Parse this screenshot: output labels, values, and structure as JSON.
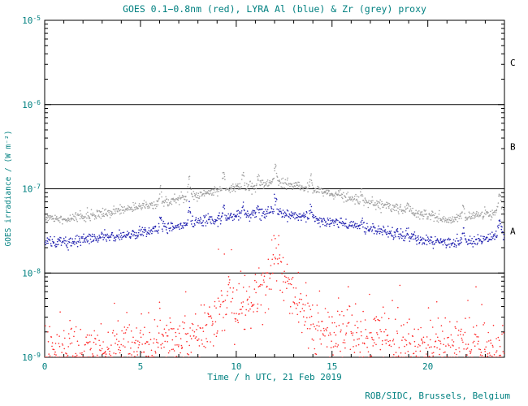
{
  "page": {
    "credit": "ROB/SIDC, Brussels, Belgium"
  },
  "colors": {
    "axis_text": "#008080",
    "frame": "#000000",
    "background": "#ffffff",
    "goes_red": "#ff2a2a",
    "lyra_al_blue": "#2222b0",
    "lyra_zr_grey": "#a0a0a0"
  },
  "chart_data": {
    "type": "scatter",
    "title": "GOES 0.1−0.8nm (red), LYRA Al (blue) & Zr (grey) proxy",
    "xlabel": "Time / h UTC, 21 Feb 2019",
    "ylabel": "GOES irradiance / (W m⁻²)",
    "date_shown": "21 Feb 2019",
    "x_range_hours": [
      0,
      24
    ],
    "x_major_ticks": [
      0,
      5,
      10,
      15,
      20
    ],
    "y_scale": "log",
    "y_range_w_m2": [
      1e-09,
      1e-05
    ],
    "y_log_range": [
      -9,
      -5
    ],
    "y_tick_exponents": [
      -5,
      -6,
      -7,
      -8,
      -9
    ],
    "grid": false,
    "legend_position": "in-title",
    "flare_class_lines": [
      {
        "label": "C",
        "log10_flux": -6
      },
      {
        "label": "B",
        "log10_flux": -7
      },
      {
        "label": "A",
        "log10_flux": -8
      }
    ],
    "series": [
      {
        "id": "lyra-zr-grey",
        "name": "LYRA Zr proxy",
        "color": "#a0a0a0",
        "sigma_log10": 0.03,
        "n_points": 1000,
        "dot_radius": 0.8,
        "trend_log10": [
          [
            0,
            -7.34
          ],
          [
            1,
            -7.37
          ],
          [
            2,
            -7.33
          ],
          [
            3,
            -7.3
          ],
          [
            4,
            -7.26
          ],
          [
            5,
            -7.22
          ],
          [
            6,
            -7.17
          ],
          [
            7,
            -7.12
          ],
          [
            8,
            -7.07
          ],
          [
            9,
            -7.02
          ],
          [
            10,
            -6.99
          ],
          [
            11,
            -6.97
          ],
          [
            11.8,
            -6.93
          ],
          [
            12.5,
            -6.94
          ],
          [
            13,
            -6.96
          ],
          [
            14,
            -7.01
          ],
          [
            15,
            -7.06
          ],
          [
            16,
            -7.11
          ],
          [
            17,
            -7.16
          ],
          [
            18,
            -7.21
          ],
          [
            19,
            -7.27
          ],
          [
            20,
            -7.32
          ],
          [
            21,
            -7.36
          ],
          [
            22,
            -7.34
          ],
          [
            23,
            -7.31
          ],
          [
            24,
            -7.27
          ]
        ],
        "spikes": [
          {
            "t": 6.05,
            "amp": 0.2,
            "w": 0.05
          },
          {
            "t": 7.55,
            "amp": 0.26,
            "w": 0.05
          },
          {
            "t": 9.35,
            "amp": 0.22,
            "w": 0.05
          },
          {
            "t": 10.35,
            "amp": 0.17,
            "w": 0.05
          },
          {
            "t": 11.15,
            "amp": 0.1,
            "w": 0.05
          },
          {
            "t": 12.05,
            "amp": 0.22,
            "w": 0.06
          },
          {
            "t": 13.9,
            "amp": 0.16,
            "w": 0.05
          },
          {
            "t": 16.55,
            "amp": 0.1,
            "w": 0.05
          },
          {
            "t": 18.95,
            "amp": 0.08,
            "w": 0.05
          },
          {
            "t": 21.85,
            "amp": 0.18,
            "w": 0.05
          },
          {
            "t": 23.75,
            "amp": 0.22,
            "w": 0.08
          }
        ]
      },
      {
        "id": "lyra-al-blue",
        "name": "LYRA Al proxy",
        "color": "#2222b0",
        "sigma_log10": 0.032,
        "n_points": 1000,
        "dot_radius": 0.8,
        "trend_log10": [
          [
            0,
            -7.62
          ],
          [
            1,
            -7.64
          ],
          [
            2,
            -7.61
          ],
          [
            3,
            -7.58
          ],
          [
            4,
            -7.55
          ],
          [
            5,
            -7.52
          ],
          [
            6,
            -7.48
          ],
          [
            7,
            -7.44
          ],
          [
            8,
            -7.4
          ],
          [
            9,
            -7.36
          ],
          [
            10,
            -7.33
          ],
          [
            11,
            -7.31
          ],
          [
            11.8,
            -7.28
          ],
          [
            12.5,
            -7.29
          ],
          [
            13,
            -7.31
          ],
          [
            14,
            -7.35
          ],
          [
            15,
            -7.39
          ],
          [
            16,
            -7.43
          ],
          [
            17,
            -7.48
          ],
          [
            18,
            -7.52
          ],
          [
            19,
            -7.57
          ],
          [
            20,
            -7.61
          ],
          [
            21,
            -7.64
          ],
          [
            22,
            -7.62
          ],
          [
            23,
            -7.59
          ],
          [
            24,
            -7.55
          ]
        ],
        "spikes": [
          {
            "t": 6.05,
            "amp": 0.16,
            "w": 0.05
          },
          {
            "t": 7.55,
            "amp": 0.2,
            "w": 0.05
          },
          {
            "t": 9.35,
            "amp": 0.17,
            "w": 0.05
          },
          {
            "t": 10.35,
            "amp": 0.13,
            "w": 0.05
          },
          {
            "t": 11.15,
            "amp": 0.08,
            "w": 0.05
          },
          {
            "t": 12.05,
            "amp": 0.17,
            "w": 0.06
          },
          {
            "t": 13.9,
            "amp": 0.12,
            "w": 0.05
          },
          {
            "t": 16.55,
            "amp": 0.08,
            "w": 0.05
          },
          {
            "t": 18.95,
            "amp": 0.06,
            "w": 0.05
          },
          {
            "t": 21.85,
            "amp": 0.14,
            "w": 0.05
          },
          {
            "t": 23.75,
            "amp": 0.18,
            "w": 0.08
          }
        ]
      },
      {
        "id": "goes-xray-red",
        "name": "GOES 0.1-0.8nm",
        "color": "#ff2a2a",
        "sigma_log10": 0.15,
        "tail_prob": 0.15,
        "tail_log10": 0.35,
        "n_points": 900,
        "dot_radius": 0.8,
        "trend_log10": [
          [
            0,
            -8.95
          ],
          [
            1,
            -8.93
          ],
          [
            2,
            -8.92
          ],
          [
            3,
            -8.9
          ],
          [
            4,
            -8.88
          ],
          [
            5,
            -8.86
          ],
          [
            6,
            -8.82
          ],
          [
            7,
            -8.8
          ],
          [
            8,
            -8.74
          ],
          [
            9,
            -8.55
          ],
          [
            9.8,
            -8.38
          ],
          [
            10.3,
            -8.45
          ],
          [
            11,
            -8.35
          ],
          [
            11.6,
            -8.15
          ],
          [
            12.05,
            -7.98
          ],
          [
            12.5,
            -8.05
          ],
          [
            13,
            -8.25
          ],
          [
            13.5,
            -8.45
          ],
          [
            14,
            -8.6
          ],
          [
            15,
            -8.72
          ],
          [
            16,
            -8.7
          ],
          [
            16.8,
            -8.78
          ],
          [
            17.5,
            -8.72
          ],
          [
            18,
            -8.85
          ],
          [
            19,
            -8.9
          ],
          [
            20,
            -8.93
          ],
          [
            21,
            -8.9
          ],
          [
            22,
            -8.88
          ],
          [
            23,
            -8.9
          ],
          [
            24,
            -8.88
          ]
        ],
        "spikes": [
          {
            "t": 6.0,
            "amp": 0.25,
            "w": 0.05
          },
          {
            "t": 9.6,
            "amp": 0.3,
            "w": 0.06
          },
          {
            "t": 12.05,
            "amp": 0.2,
            "w": 0.1
          },
          {
            "t": 15.9,
            "amp": 0.3,
            "w": 0.05
          },
          {
            "t": 17.4,
            "amp": 0.25,
            "w": 0.05
          },
          {
            "t": 19.05,
            "amp": 0.2,
            "w": 0.05
          },
          {
            "t": 22.55,
            "amp": 0.25,
            "w": 0.05
          }
        ]
      }
    ]
  }
}
